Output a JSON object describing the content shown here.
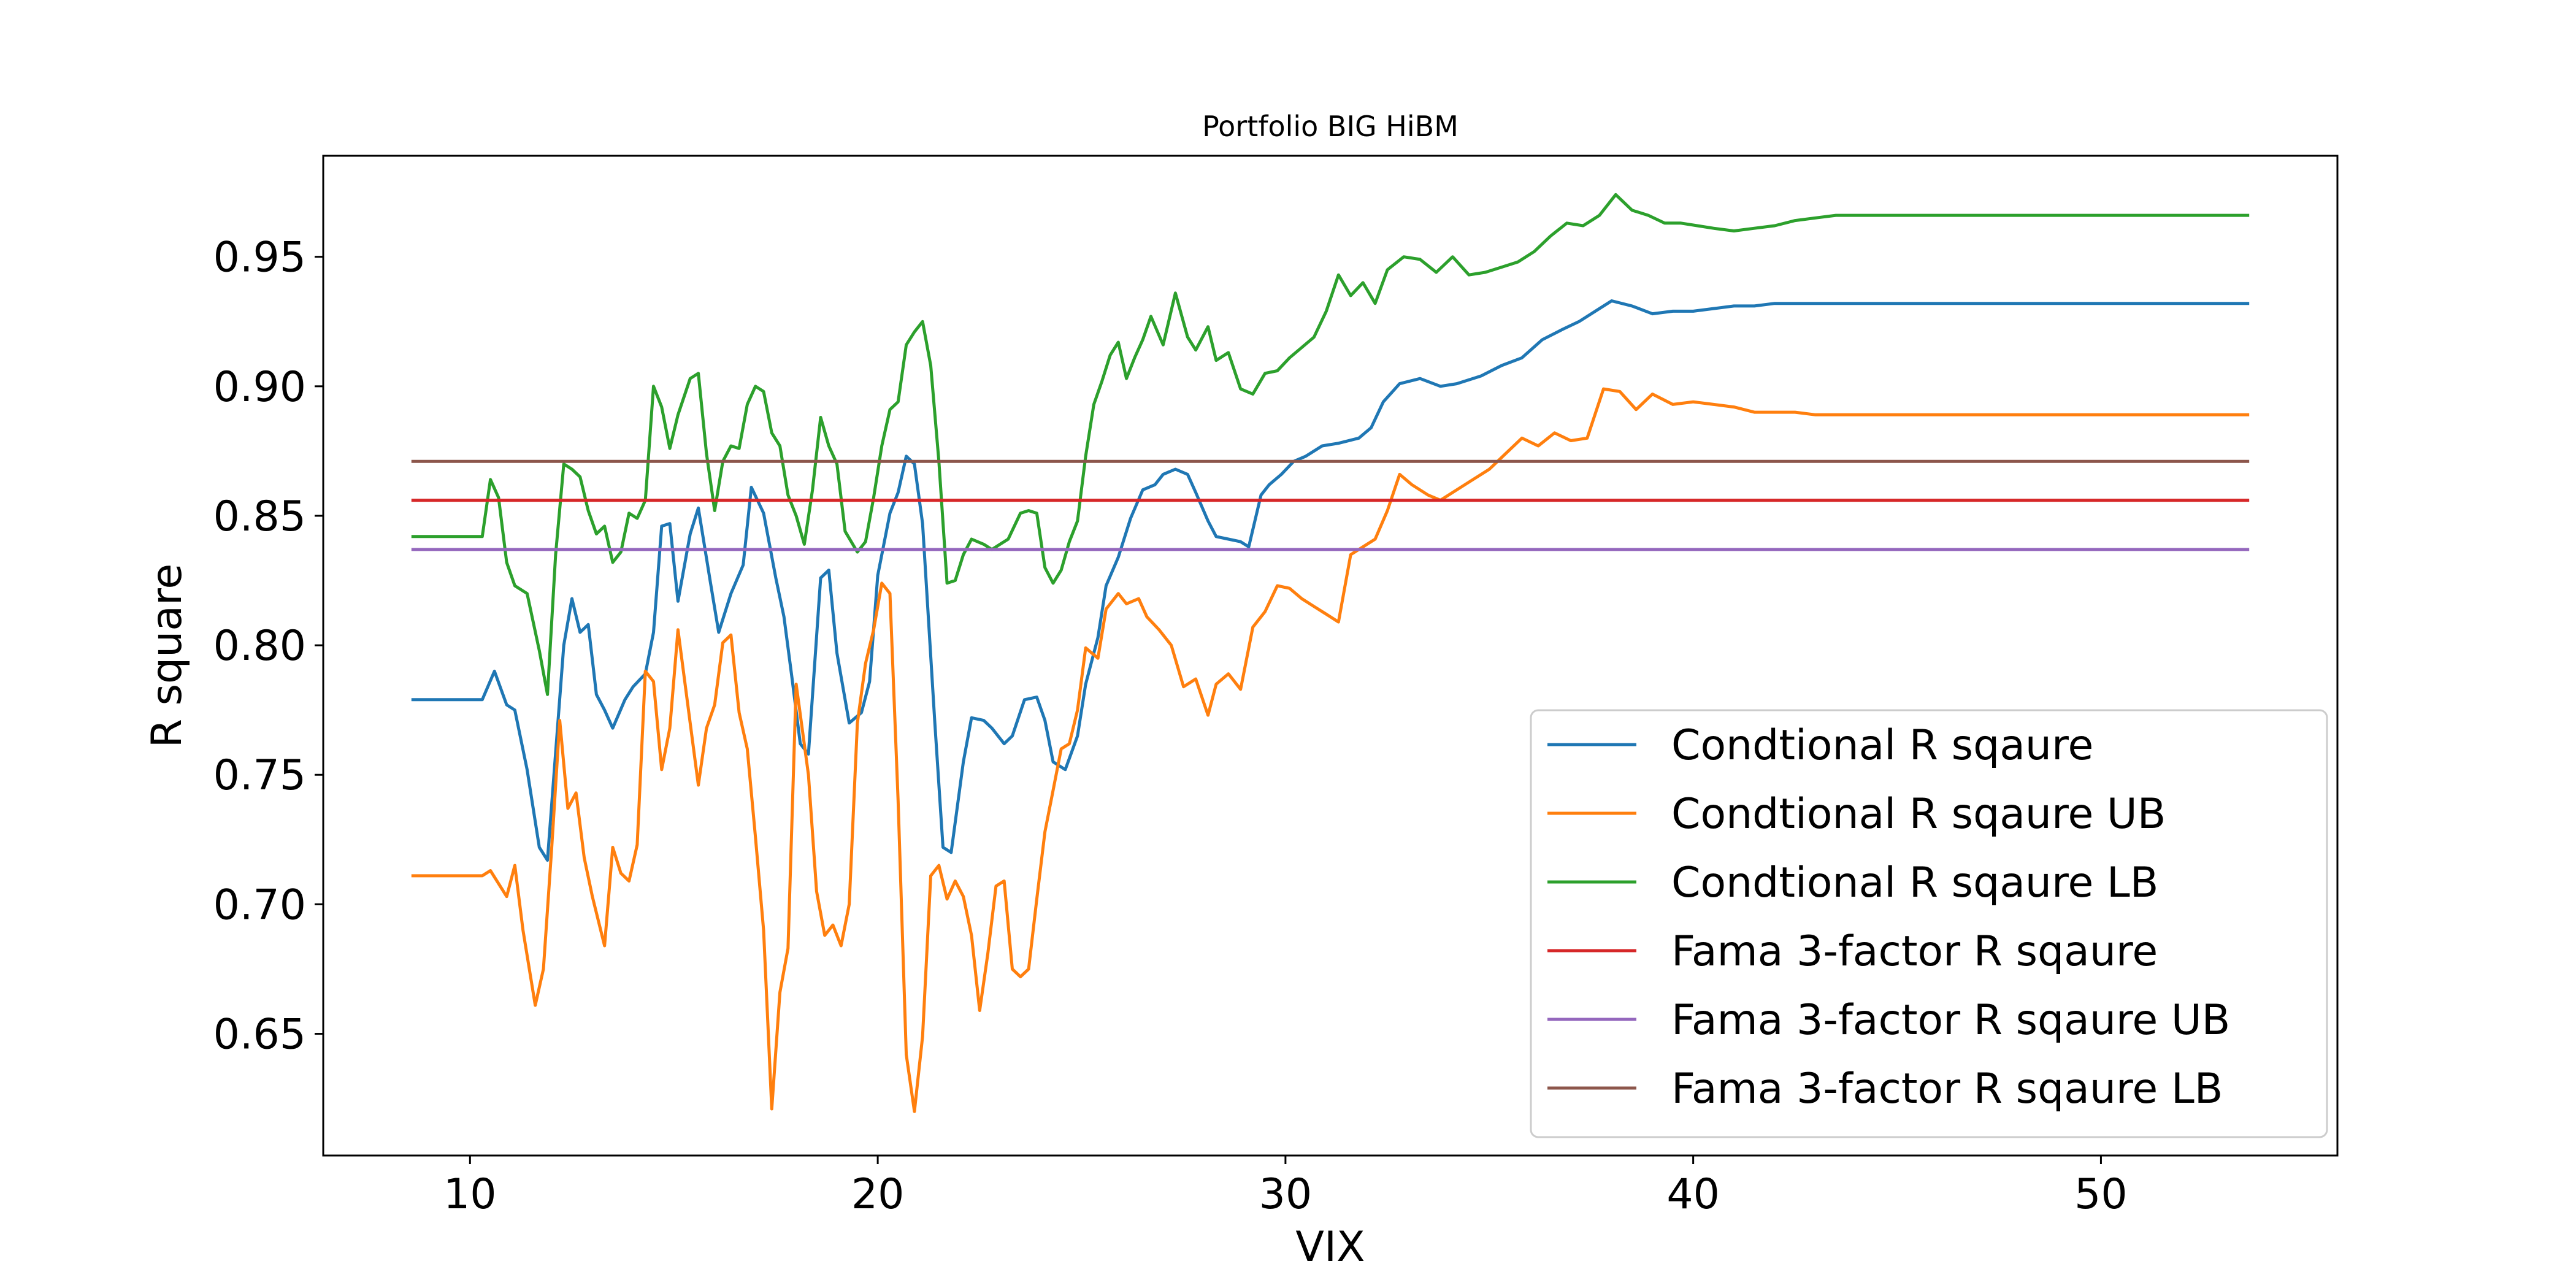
{
  "chart_data": {
    "type": "line",
    "title": "Portfolio BIG HiBM",
    "xlabel": "VIX",
    "ylabel": "R square",
    "xlim": [
      6.4,
      55.8
    ],
    "ylim": [
      0.603,
      0.989
    ],
    "xticks": [
      10,
      20,
      30,
      40,
      50
    ],
    "yticks": [
      0.65,
      0.7,
      0.75,
      0.8,
      0.85,
      0.9,
      0.95
    ],
    "ytick_labels": [
      "0.65",
      "0.70",
      "0.75",
      "0.80",
      "0.85",
      "0.90",
      "0.95"
    ],
    "grid": false,
    "legend_position": "lower-right",
    "series": [
      {
        "name": "Condtional R sqaure",
        "color": "#1f77b4",
        "x": [
          8.6,
          10.3,
          10.6,
          10.9,
          11.1,
          11.4,
          11.7,
          11.9,
          12.3,
          12.5,
          12.7,
          12.9,
          13.1,
          13.3,
          13.5,
          13.8,
          14.0,
          14.3,
          14.5,
          14.7,
          14.9,
          15.1,
          15.4,
          15.6,
          15.9,
          16.1,
          16.4,
          16.7,
          16.9,
          17.2,
          17.5,
          17.7,
          17.9,
          18.1,
          18.3,
          18.6,
          18.8,
          19.0,
          19.3,
          19.6,
          19.8,
          20.0,
          20.3,
          20.5,
          20.7,
          20.9,
          21.1,
          21.4,
          21.6,
          21.8,
          22.1,
          22.3,
          22.6,
          22.8,
          23.1,
          23.3,
          23.6,
          23.9,
          24.1,
          24.3,
          24.6,
          24.9,
          25.1,
          25.4,
          25.6,
          25.9,
          26.2,
          26.5,
          26.8,
          27.0,
          27.3,
          27.6,
          27.8,
          28.1,
          28.3,
          28.6,
          28.9,
          29.1,
          29.4,
          29.6,
          29.9,
          30.2,
          30.5,
          30.9,
          31.3,
          31.8,
          32.1,
          32.4,
          32.8,
          33.3,
          33.8,
          34.2,
          34.8,
          35.3,
          35.8,
          36.3,
          36.8,
          37.2,
          37.6,
          38.0,
          38.5,
          39.0,
          39.5,
          40.0,
          40.5,
          41.0,
          41.5,
          42.0,
          42.5,
          43.0,
          44.0,
          45.0,
          50.0,
          53.6
        ],
        "y": [
          0.779,
          0.779,
          0.79,
          0.777,
          0.775,
          0.752,
          0.722,
          0.717,
          0.8,
          0.818,
          0.805,
          0.808,
          0.781,
          0.775,
          0.768,
          0.779,
          0.784,
          0.789,
          0.805,
          0.846,
          0.847,
          0.817,
          0.843,
          0.853,
          0.824,
          0.805,
          0.82,
          0.831,
          0.861,
          0.851,
          0.826,
          0.811,
          0.787,
          0.762,
          0.758,
          0.826,
          0.829,
          0.797,
          0.77,
          0.774,
          0.786,
          0.827,
          0.851,
          0.859,
          0.873,
          0.87,
          0.847,
          0.77,
          0.722,
          0.72,
          0.755,
          0.772,
          0.771,
          0.768,
          0.762,
          0.765,
          0.779,
          0.78,
          0.771,
          0.755,
          0.752,
          0.765,
          0.785,
          0.803,
          0.823,
          0.834,
          0.849,
          0.86,
          0.862,
          0.866,
          0.868,
          0.866,
          0.859,
          0.848,
          0.842,
          0.841,
          0.84,
          0.838,
          0.858,
          0.862,
          0.866,
          0.871,
          0.873,
          0.877,
          0.878,
          0.88,
          0.884,
          0.894,
          0.901,
          0.903,
          0.9,
          0.901,
          0.904,
          0.908,
          0.911,
          0.918,
          0.922,
          0.925,
          0.929,
          0.933,
          0.931,
          0.928,
          0.929,
          0.929,
          0.93,
          0.931,
          0.931,
          0.932,
          0.932,
          0.932,
          0.932,
          0.932,
          0.932,
          0.932
        ]
      },
      {
        "name": "Condtional R sqaure UB",
        "color": "#ff7f0e",
        "x": [
          8.6,
          10.3,
          10.5,
          10.9,
          11.1,
          11.3,
          11.6,
          11.8,
          12.0,
          12.2,
          12.4,
          12.6,
          12.8,
          13.0,
          13.3,
          13.5,
          13.7,
          13.9,
          14.1,
          14.3,
          14.5,
          14.7,
          14.9,
          15.1,
          15.4,
          15.6,
          15.8,
          16.0,
          16.2,
          16.4,
          16.6,
          16.8,
          17.0,
          17.2,
          17.4,
          17.6,
          17.8,
          18.0,
          18.3,
          18.5,
          18.7,
          18.9,
          19.1,
          19.3,
          19.5,
          19.7,
          19.9,
          20.1,
          20.3,
          20.5,
          20.7,
          20.9,
          21.1,
          21.3,
          21.5,
          21.7,
          21.9,
          22.1,
          22.3,
          22.5,
          22.7,
          22.9,
          23.1,
          23.3,
          23.5,
          23.7,
          23.9,
          24.1,
          24.3,
          24.5,
          24.7,
          24.9,
          25.1,
          25.4,
          25.6,
          25.9,
          26.1,
          26.4,
          26.6,
          26.9,
          27.2,
          27.5,
          27.8,
          28.1,
          28.3,
          28.6,
          28.9,
          29.2,
          29.5,
          29.8,
          30.1,
          30.4,
          30.7,
          31.0,
          31.3,
          31.6,
          31.9,
          32.2,
          32.5,
          32.8,
          33.1,
          33.5,
          33.8,
          34.2,
          34.6,
          35.0,
          35.4,
          35.8,
          36.2,
          36.6,
          37.0,
          37.4,
          37.8,
          38.2,
          38.6,
          39.0,
          39.5,
          40.0,
          40.5,
          41.0,
          41.5,
          42.0,
          42.5,
          43.0,
          44.0,
          50.0,
          53.6
        ],
        "y": [
          0.711,
          0.711,
          0.713,
          0.703,
          0.715,
          0.69,
          0.661,
          0.675,
          0.721,
          0.771,
          0.737,
          0.743,
          0.718,
          0.703,
          0.684,
          0.722,
          0.712,
          0.709,
          0.723,
          0.79,
          0.786,
          0.752,
          0.768,
          0.806,
          0.77,
          0.746,
          0.768,
          0.777,
          0.801,
          0.804,
          0.774,
          0.76,
          0.726,
          0.69,
          0.621,
          0.666,
          0.683,
          0.785,
          0.75,
          0.705,
          0.688,
          0.692,
          0.684,
          0.7,
          0.77,
          0.793,
          0.806,
          0.824,
          0.82,
          0.74,
          0.642,
          0.62,
          0.649,
          0.711,
          0.715,
          0.702,
          0.709,
          0.703,
          0.688,
          0.659,
          0.681,
          0.707,
          0.709,
          0.675,
          0.672,
          0.675,
          0.702,
          0.728,
          0.744,
          0.76,
          0.762,
          0.775,
          0.799,
          0.795,
          0.814,
          0.82,
          0.816,
          0.818,
          0.811,
          0.806,
          0.8,
          0.784,
          0.787,
          0.773,
          0.785,
          0.789,
          0.783,
          0.807,
          0.813,
          0.823,
          0.822,
          0.818,
          0.815,
          0.812,
          0.809,
          0.835,
          0.838,
          0.841,
          0.852,
          0.866,
          0.862,
          0.858,
          0.856,
          0.86,
          0.864,
          0.868,
          0.874,
          0.88,
          0.877,
          0.882,
          0.879,
          0.88,
          0.899,
          0.898,
          0.891,
          0.897,
          0.893,
          0.894,
          0.893,
          0.892,
          0.89,
          0.89,
          0.89,
          0.889,
          0.889,
          0.889,
          0.889
        ]
      },
      {
        "name": "Condtional R sqaure LB",
        "color": "#2ca02c",
        "x": [
          8.6,
          10.3,
          10.5,
          10.7,
          10.9,
          11.1,
          11.4,
          11.7,
          11.9,
          12.1,
          12.3,
          12.5,
          12.7,
          12.9,
          13.1,
          13.3,
          13.5,
          13.7,
          13.9,
          14.1,
          14.3,
          14.5,
          14.7,
          14.9,
          15.1,
          15.4,
          15.6,
          15.8,
          16.0,
          16.2,
          16.4,
          16.6,
          16.8,
          17.0,
          17.2,
          17.4,
          17.6,
          17.8,
          18.0,
          18.2,
          18.4,
          18.6,
          18.8,
          19.0,
          19.2,
          19.5,
          19.7,
          19.9,
          20.1,
          20.3,
          20.5,
          20.7,
          20.9,
          21.1,
          21.3,
          21.5,
          21.7,
          21.9,
          22.1,
          22.3,
          22.6,
          22.8,
          23.0,
          23.2,
          23.5,
          23.7,
          23.9,
          24.1,
          24.3,
          24.5,
          24.7,
          24.9,
          25.1,
          25.3,
          25.5,
          25.7,
          25.9,
          26.1,
          26.3,
          26.5,
          26.7,
          27.0,
          27.3,
          27.6,
          27.8,
          28.1,
          28.3,
          28.6,
          28.9,
          29.2,
          29.5,
          29.8,
          30.1,
          30.4,
          30.7,
          31.0,
          31.3,
          31.6,
          31.9,
          32.2,
          32.5,
          32.9,
          33.3,
          33.7,
          34.1,
          34.5,
          34.9,
          35.3,
          35.7,
          36.1,
          36.5,
          36.9,
          37.3,
          37.7,
          38.1,
          38.5,
          38.9,
          39.3,
          39.7,
          40.1,
          40.5,
          41.0,
          41.5,
          42.0,
          42.5,
          43.0,
          43.5,
          44.0,
          50.0,
          53.6
        ],
        "y": [
          0.842,
          0.842,
          0.864,
          0.857,
          0.832,
          0.823,
          0.82,
          0.798,
          0.781,
          0.835,
          0.87,
          0.868,
          0.865,
          0.852,
          0.843,
          0.846,
          0.832,
          0.836,
          0.851,
          0.849,
          0.856,
          0.9,
          0.892,
          0.876,
          0.889,
          0.903,
          0.905,
          0.874,
          0.852,
          0.871,
          0.877,
          0.876,
          0.893,
          0.9,
          0.898,
          0.882,
          0.877,
          0.858,
          0.85,
          0.839,
          0.86,
          0.888,
          0.877,
          0.87,
          0.844,
          0.836,
          0.84,
          0.857,
          0.877,
          0.891,
          0.894,
          0.916,
          0.921,
          0.925,
          0.908,
          0.871,
          0.824,
          0.825,
          0.835,
          0.841,
          0.839,
          0.837,
          0.839,
          0.841,
          0.851,
          0.852,
          0.851,
          0.83,
          0.824,
          0.829,
          0.84,
          0.848,
          0.873,
          0.893,
          0.902,
          0.912,
          0.917,
          0.903,
          0.911,
          0.918,
          0.927,
          0.916,
          0.936,
          0.919,
          0.914,
          0.923,
          0.91,
          0.913,
          0.899,
          0.897,
          0.905,
          0.906,
          0.911,
          0.915,
          0.919,
          0.929,
          0.943,
          0.935,
          0.94,
          0.932,
          0.945,
          0.95,
          0.949,
          0.944,
          0.95,
          0.943,
          0.944,
          0.946,
          0.948,
          0.952,
          0.958,
          0.963,
          0.962,
          0.966,
          0.974,
          0.968,
          0.966,
          0.963,
          0.963,
          0.962,
          0.961,
          0.96,
          0.961,
          0.962,
          0.964,
          0.965,
          0.966,
          0.966,
          0.966,
          0.966
        ]
      },
      {
        "name": "Fama 3-factor R sqaure",
        "color": "#d62728",
        "x": [
          8.6,
          53.6
        ],
        "y": [
          0.856,
          0.856
        ]
      },
      {
        "name": "Fama 3-factor R sqaure UB",
        "color": "#9467bd",
        "x": [
          8.6,
          53.6
        ],
        "y": [
          0.837,
          0.837
        ]
      },
      {
        "name": "Fama 3-factor R sqaure LB",
        "color": "#8c564b",
        "x": [
          8.6,
          53.6
        ],
        "y": [
          0.871,
          0.871
        ]
      }
    ]
  }
}
